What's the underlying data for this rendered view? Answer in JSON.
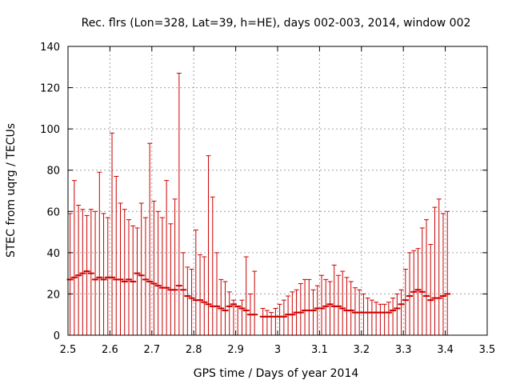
{
  "chart_data": {
    "type": "scatter",
    "title": "Rec. flrs (Lon=328, Lat=39, h=HE), days 002-003, 2014, window 002",
    "xlabel": "GPS time / Days of year 2014",
    "ylabel": "STEC from uqrg / TECUs",
    "xlim": [
      2.5,
      3.5
    ],
    "ylim": [
      0,
      140
    ],
    "x_ticks": [
      "2.5",
      "2.6",
      "2.7",
      "2.8",
      "2.9",
      "3",
      "3.1",
      "3.2",
      "3.3",
      "3.4",
      "3.5"
    ],
    "y_ticks": [
      "0",
      "20",
      "40",
      "60",
      "80",
      "100",
      "120",
      "140"
    ],
    "grid": true,
    "legend": "none",
    "colors": {
      "series": "#cc0000",
      "grid": "#a0a0a0",
      "axis": "#000000"
    },
    "series": [
      {
        "style": "vertical-errorbars",
        "points": [
          [
            2.505,
            27,
            0,
            59
          ],
          [
            2.515,
            28,
            0,
            75
          ],
          [
            2.525,
            29,
            0,
            63
          ],
          [
            2.535,
            30,
            0,
            61
          ],
          [
            2.545,
            31,
            0,
            58
          ],
          [
            2.555,
            30,
            0,
            61
          ],
          [
            2.565,
            27,
            0,
            60
          ],
          [
            2.575,
            28,
            0,
            79
          ],
          [
            2.585,
            27,
            0,
            59
          ],
          [
            2.595,
            28,
            0,
            57
          ],
          [
            2.605,
            28,
            0,
            98
          ],
          [
            2.615,
            27,
            0,
            77
          ],
          [
            2.625,
            27,
            0,
            64
          ],
          [
            2.635,
            26,
            0,
            61
          ],
          [
            2.645,
            27,
            0,
            56
          ],
          [
            2.655,
            26,
            0,
            53
          ],
          [
            2.665,
            30,
            0,
            52
          ],
          [
            2.675,
            29,
            0,
            64
          ],
          [
            2.685,
            27,
            0,
            57
          ],
          [
            2.695,
            26,
            0,
            93
          ],
          [
            2.705,
            25,
            0,
            65
          ],
          [
            2.715,
            24,
            0,
            60
          ],
          [
            2.725,
            23,
            0,
            57
          ],
          [
            2.735,
            23,
            0,
            75
          ],
          [
            2.745,
            22,
            0,
            54
          ],
          [
            2.755,
            22,
            0,
            66
          ],
          [
            2.765,
            24,
            0,
            127
          ],
          [
            2.775,
            22,
            0,
            40
          ],
          [
            2.785,
            19,
            0,
            33
          ],
          [
            2.795,
            18,
            0,
            32
          ],
          [
            2.805,
            17,
            0,
            51
          ],
          [
            2.815,
            17,
            0,
            39
          ],
          [
            2.825,
            16,
            0,
            38
          ],
          [
            2.835,
            15,
            0,
            87
          ],
          [
            2.845,
            14,
            0,
            67
          ],
          [
            2.855,
            14,
            0,
            40
          ],
          [
            2.865,
            13,
            0,
            27
          ],
          [
            2.875,
            12,
            0,
            26
          ],
          [
            2.885,
            14,
            0,
            21
          ],
          [
            2.895,
            15,
            0,
            17
          ],
          [
            2.905,
            14,
            0,
            14
          ],
          [
            2.915,
            13,
            0,
            17
          ],
          [
            2.925,
            12,
            0,
            38
          ],
          [
            2.935,
            10,
            0,
            20
          ],
          [
            2.945,
            10,
            0,
            31
          ],
          [
            2.965,
            9,
            0,
            13
          ],
          [
            2.975,
            9,
            0,
            12
          ],
          [
            2.985,
            9,
            0,
            11
          ],
          [
            2.995,
            9,
            0,
            13
          ],
          [
            3.005,
            9,
            0,
            15
          ],
          [
            3.015,
            9,
            0,
            17
          ],
          [
            3.025,
            10,
            0,
            19
          ],
          [
            3.035,
            10,
            0,
            21
          ],
          [
            3.045,
            11,
            0,
            22
          ],
          [
            3.055,
            11,
            0,
            25
          ],
          [
            3.065,
            12,
            0,
            27
          ],
          [
            3.075,
            12,
            0,
            27
          ],
          [
            3.085,
            12,
            0,
            22
          ],
          [
            3.095,
            13,
            0,
            24
          ],
          [
            3.105,
            13,
            0,
            29
          ],
          [
            3.115,
            14,
            0,
            27
          ],
          [
            3.125,
            15,
            0,
            26
          ],
          [
            3.135,
            14,
            0,
            34
          ],
          [
            3.145,
            14,
            0,
            29
          ],
          [
            3.155,
            13,
            0,
            31
          ],
          [
            3.165,
            12,
            0,
            28
          ],
          [
            3.175,
            12,
            0,
            26
          ],
          [
            3.185,
            11,
            0,
            23
          ],
          [
            3.195,
            11,
            0,
            22
          ],
          [
            3.205,
            11,
            0,
            20
          ],
          [
            3.215,
            11,
            0,
            18
          ],
          [
            3.225,
            11,
            0,
            17
          ],
          [
            3.235,
            11,
            0,
            16
          ],
          [
            3.245,
            11,
            0,
            15
          ],
          [
            3.255,
            11,
            0,
            15
          ],
          [
            3.265,
            11,
            0,
            16
          ],
          [
            3.275,
            12,
            0,
            18
          ],
          [
            3.285,
            13,
            0,
            20
          ],
          [
            3.295,
            15,
            0,
            22
          ],
          [
            3.305,
            17,
            0,
            32
          ],
          [
            3.315,
            19,
            0,
            40
          ],
          [
            3.325,
            21,
            0,
            41
          ],
          [
            3.335,
            22,
            0,
            42
          ],
          [
            3.345,
            21,
            0,
            52
          ],
          [
            3.355,
            19,
            0,
            56
          ],
          [
            3.365,
            17,
            0,
            44
          ],
          [
            3.375,
            18,
            0,
            62
          ],
          [
            3.385,
            18,
            0,
            66
          ],
          [
            3.395,
            19,
            0,
            59
          ],
          [
            3.405,
            20,
            0,
            60
          ]
        ]
      }
    ]
  }
}
